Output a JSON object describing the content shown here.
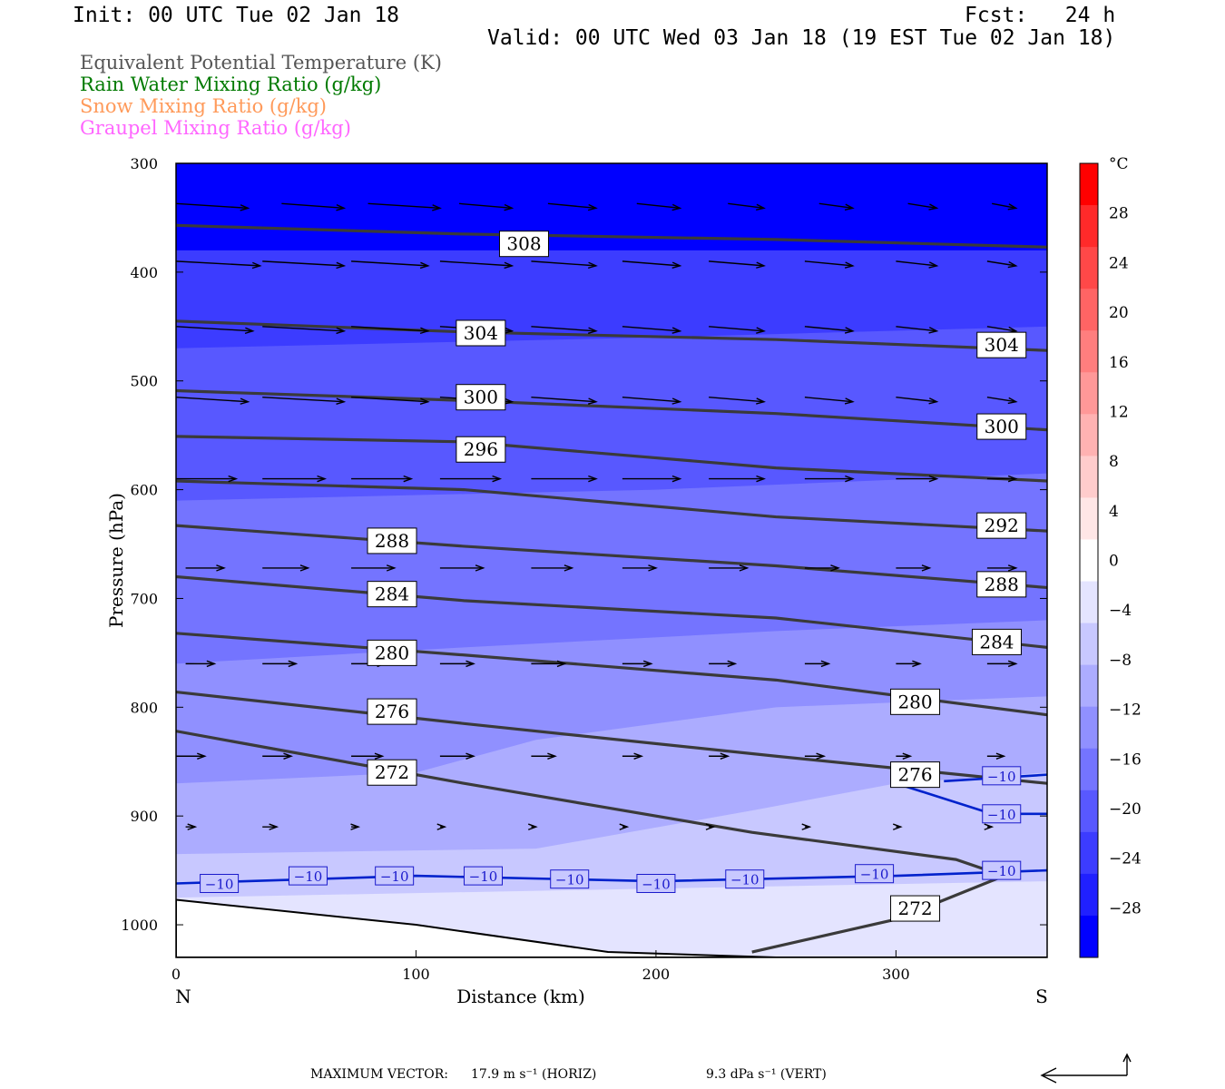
{
  "header": {
    "init": "Init: 00 UTC Tue 02 Jan 18",
    "fcst": "Fcst:   24 h",
    "valid": "Valid: 00 UTC Wed 03 Jan 18 (19 EST Tue 02 Jan 18)"
  },
  "legend": [
    {
      "label": "Equivalent Potential Temperature (K)",
      "color": "#555555"
    },
    {
      "label": "Rain Water Mixing Ratio (g/kg)",
      "color": "#007a00"
    },
    {
      "label": "Snow Mixing Ratio (g/kg)",
      "color": "#ff9a5a"
    },
    {
      "label": "Graupel Mixing Ratio (g/kg)",
      "color": "#ff66ff"
    }
  ],
  "chart_data": {
    "type": "heatmap",
    "xlabel": "Distance (km)",
    "ylabel": "Pressure (hPa)",
    "xlim": [
      0,
      363
    ],
    "ylim": [
      1030,
      300
    ],
    "x_ticks": [
      0,
      100,
      200,
      300
    ],
    "y_ticks": [
      300,
      400,
      500,
      600,
      700,
      800,
      900,
      1000
    ],
    "endpoint_labels": {
      "left": "N",
      "right": "S"
    },
    "colorbar": {
      "unit": "°C",
      "tick_labels": [
        "28",
        "24",
        "20",
        "16",
        "12",
        "8",
        "4",
        "0",
        "−4",
        "−8",
        "−12",
        "−16",
        "−20",
        "−24",
        "−28"
      ],
      "tick_values": [
        28,
        24,
        20,
        16,
        12,
        8,
        4,
        0,
        -4,
        -8,
        -12,
        -16,
        -20,
        -24,
        -28
      ],
      "colors": [
        "#ff0000",
        "#ff2a2a",
        "#ff4848",
        "#ff6464",
        "#ff7e7e",
        "#ff9898",
        "#ffb2b2",
        "#ffcccc",
        "#ffe6e6",
        "#ffffff",
        "#e4e4ff",
        "#c8c8ff",
        "#acacff",
        "#9090ff",
        "#7474ff",
        "#5858ff",
        "#3c3cff",
        "#2020ff",
        "#0000ff"
      ],
      "range": [
        -32,
        32
      ]
    },
    "temperature_fill": [
      {
        "level": -12,
        "color": "#c8c8ff",
        "boundary": [
          [
            0,
            975
          ],
          [
            363,
            960
          ]
        ]
      },
      {
        "level": -16,
        "color": "#acacff",
        "boundary": [
          [
            0,
            935
          ],
          [
            150,
            930
          ],
          [
            240,
            895
          ],
          [
            300,
            870
          ],
          [
            363,
            860
          ]
        ]
      },
      {
        "level": -20,
        "color": "#9090ff",
        "boundary": [
          [
            0,
            870
          ],
          [
            100,
            860
          ],
          [
            150,
            830
          ],
          [
            250,
            800
          ],
          [
            363,
            790
          ]
        ]
      },
      {
        "level": -24,
        "color": "#7474ff",
        "boundary": [
          [
            0,
            760
          ],
          [
            120,
            745
          ],
          [
            250,
            730
          ],
          [
            363,
            720
          ]
        ]
      },
      {
        "level": -28,
        "color": "#5858ff",
        "boundary": [
          [
            0,
            610
          ],
          [
            200,
            600
          ],
          [
            363,
            585
          ]
        ]
      },
      {
        "level": -32,
        "color": "#3c3cff",
        "boundary": [
          [
            0,
            470
          ],
          [
            200,
            460
          ],
          [
            363,
            450
          ]
        ]
      },
      {
        "level": -36,
        "color": "#0000ff",
        "boundary": [
          [
            0,
            380
          ],
          [
            363,
            380
          ]
        ]
      }
    ],
    "theta_e_contours": [
      {
        "label": "308",
        "points": [
          [
            0,
            357
          ],
          [
            120,
            365
          ],
          [
            250,
            370
          ],
          [
            363,
            377
          ]
        ]
      },
      {
        "label": "304",
        "points": [
          [
            0,
            445
          ],
          [
            120,
            455
          ],
          [
            250,
            462
          ],
          [
            363,
            472
          ]
        ]
      },
      {
        "label": "300",
        "points": [
          [
            0,
            509
          ],
          [
            120,
            518
          ],
          [
            250,
            530
          ],
          [
            363,
            545
          ]
        ]
      },
      {
        "label": "296",
        "points": [
          [
            0,
            551
          ],
          [
            120,
            556
          ],
          [
            250,
            580
          ],
          [
            363,
            592
          ]
        ]
      },
      {
        "label": "292",
        "points": [
          [
            0,
            592
          ],
          [
            120,
            600
          ],
          [
            250,
            625
          ],
          [
            363,
            638
          ]
        ]
      },
      {
        "label": "288",
        "points": [
          [
            0,
            633
          ],
          [
            120,
            652
          ],
          [
            250,
            670
          ],
          [
            363,
            690
          ]
        ]
      },
      {
        "label": "284",
        "points": [
          [
            0,
            680
          ],
          [
            120,
            702
          ],
          [
            250,
            718
          ],
          [
            363,
            745
          ]
        ]
      },
      {
        "label": "280",
        "points": [
          [
            0,
            732
          ],
          [
            120,
            752
          ],
          [
            250,
            775
          ],
          [
            363,
            807
          ]
        ]
      },
      {
        "label": "276",
        "points": [
          [
            0,
            786
          ],
          [
            120,
            815
          ],
          [
            250,
            845
          ],
          [
            363,
            870
          ]
        ]
      },
      {
        "label": "272",
        "points": [
          [
            0,
            822
          ],
          [
            120,
            870
          ],
          [
            240,
            915
          ],
          [
            325,
            940
          ],
          [
            345,
            955
          ],
          [
            300,
            995
          ],
          [
            240,
            1025
          ]
        ]
      }
    ],
    "theta_e_labels": [
      {
        "text": "308",
        "x": 145,
        "p": 374
      },
      {
        "text": "304",
        "x": 127,
        "p": 456
      },
      {
        "text": "304",
        "x": 344,
        "p": 467
      },
      {
        "text": "300",
        "x": 127,
        "p": 515
      },
      {
        "text": "300",
        "x": 344,
        "p": 542
      },
      {
        "text": "296",
        "x": 127,
        "p": 563
      },
      {
        "text": "292",
        "x": 344,
        "p": 633
      },
      {
        "text": "288",
        "x": 90,
        "p": 647
      },
      {
        "text": "288",
        "x": 344,
        "p": 687
      },
      {
        "text": "284",
        "x": 90,
        "p": 696
      },
      {
        "text": "284",
        "x": 342,
        "p": 740
      },
      {
        "text": "280",
        "x": 90,
        "p": 750
      },
      {
        "text": "280",
        "x": 308,
        "p": 795
      },
      {
        "text": "276",
        "x": 90,
        "p": 804
      },
      {
        "text": "276",
        "x": 308,
        "p": 862
      },
      {
        "text": "272",
        "x": 90,
        "p": 860
      },
      {
        "text": "272",
        "x": 308,
        "p": 985
      }
    ],
    "isotherm_minus10": [
      {
        "points": [
          [
            0,
            962
          ],
          [
            100,
            955
          ],
          [
            200,
            960
          ],
          [
            300,
            955
          ],
          [
            363,
            950
          ]
        ]
      },
      {
        "points": [
          [
            300,
            870
          ],
          [
            340,
            898
          ],
          [
            363,
            898
          ]
        ]
      },
      {
        "points": [
          [
            320,
            868
          ],
          [
            363,
            862
          ]
        ]
      }
    ],
    "isotherm_labels": [
      {
        "text": "−10",
        "x": 18,
        "p": 962
      },
      {
        "text": "−10",
        "x": 55,
        "p": 955
      },
      {
        "text": "−10",
        "x": 91,
        "p": 955
      },
      {
        "text": "−10",
        "x": 128,
        "p": 955
      },
      {
        "text": "−10",
        "x": 164,
        "p": 958
      },
      {
        "text": "−10",
        "x": 200,
        "p": 962
      },
      {
        "text": "−10",
        "x": 237,
        "p": 958
      },
      {
        "text": "−10",
        "x": 291,
        "p": 953
      },
      {
        "text": "−10",
        "x": 344,
        "p": 950
      },
      {
        "text": "−10",
        "x": 344,
        "p": 898
      },
      {
        "text": "−10",
        "x": 344,
        "p": 863
      }
    ],
    "terrain": [
      [
        0,
        977
      ],
      [
        100,
        1000
      ],
      [
        180,
        1025
      ],
      [
        250,
        1030
      ],
      [
        363,
        1030
      ]
    ],
    "wind_vectors": [
      {
        "p": 337,
        "pts": [
          [
            0,
            30
          ],
          [
            44,
            70
          ],
          [
            80,
            110
          ],
          [
            118,
            140
          ],
          [
            155,
            175
          ],
          [
            192,
            210
          ],
          [
            230,
            245
          ],
          [
            268,
            282
          ],
          [
            305,
            317
          ],
          [
            340,
            350
          ]
        ]
      },
      {
        "p": 390,
        "pts": [
          [
            0,
            35
          ],
          [
            36,
            70
          ],
          [
            73,
            105
          ],
          [
            110,
            140
          ],
          [
            148,
            175
          ],
          [
            186,
            210
          ],
          [
            222,
            245
          ],
          [
            262,
            282
          ],
          [
            300,
            317
          ],
          [
            338,
            350
          ]
        ]
      },
      {
        "p": 450,
        "pts": [
          [
            0,
            32
          ],
          [
            36,
            70
          ],
          [
            73,
            105
          ],
          [
            110,
            140
          ],
          [
            148,
            175
          ],
          [
            186,
            210
          ],
          [
            222,
            245
          ],
          [
            262,
            282
          ],
          [
            300,
            317
          ],
          [
            338,
            350
          ]
        ]
      },
      {
        "p": 515,
        "pts": [
          [
            0,
            30
          ],
          [
            36,
            70
          ],
          [
            73,
            105
          ],
          [
            110,
            140
          ],
          [
            148,
            175
          ],
          [
            186,
            210
          ],
          [
            222,
            245
          ],
          [
            262,
            282
          ],
          [
            300,
            317
          ],
          [
            338,
            350
          ]
        ]
      },
      {
        "p": 590,
        "pts": [
          [
            0,
            25
          ],
          [
            36,
            62
          ],
          [
            73,
            98
          ],
          [
            110,
            135
          ],
          [
            148,
            175
          ],
          [
            186,
            210
          ],
          [
            222,
            245
          ],
          [
            262,
            282
          ],
          [
            300,
            317
          ],
          [
            338,
            350
          ]
        ]
      },
      {
        "p": 672,
        "pts": [
          [
            4,
            20
          ],
          [
            36,
            55
          ],
          [
            73,
            91
          ],
          [
            110,
            128
          ],
          [
            148,
            165
          ],
          [
            186,
            200
          ],
          [
            222,
            238
          ],
          [
            262,
            276
          ],
          [
            300,
            314
          ],
          [
            338,
            350
          ]
        ]
      },
      {
        "p": 760,
        "pts": [
          [
            4,
            16
          ],
          [
            36,
            50
          ],
          [
            73,
            87
          ],
          [
            110,
            124
          ],
          [
            148,
            162
          ],
          [
            186,
            198
          ],
          [
            222,
            233
          ],
          [
            262,
            272
          ],
          [
            300,
            310
          ],
          [
            338,
            350
          ]
        ]
      },
      {
        "p": 845,
        "pts": [
          [
            0,
            12
          ],
          [
            36,
            48
          ],
          [
            73,
            86
          ],
          [
            110,
            124
          ],
          [
            148,
            158
          ],
          [
            186,
            194
          ],
          [
            222,
            230
          ],
          [
            262,
            270
          ],
          [
            300,
            306
          ],
          [
            338,
            345
          ]
        ]
      },
      {
        "p": 910,
        "pts": [
          [
            4,
            8
          ],
          [
            36,
            42
          ],
          [
            73,
            76
          ],
          [
            110,
            112
          ],
          [
            148,
            150
          ],
          [
            186,
            188
          ],
          [
            222,
            224
          ],
          [
            262,
            264
          ],
          [
            300,
            302
          ],
          [
            338,
            340
          ]
        ]
      }
    ],
    "reference_vector": {
      "horiz_label": "17.9 m s⁻¹ (HORIZ)",
      "vert_label": "9.3 dPa s⁻¹ (VERT)"
    }
  },
  "footer": {
    "label": "MAXIMUM VECTOR:",
    "horiz": "17.9 m s⁻¹ (HORIZ)",
    "vert": "9.3 dPa s⁻¹ (VERT)"
  }
}
